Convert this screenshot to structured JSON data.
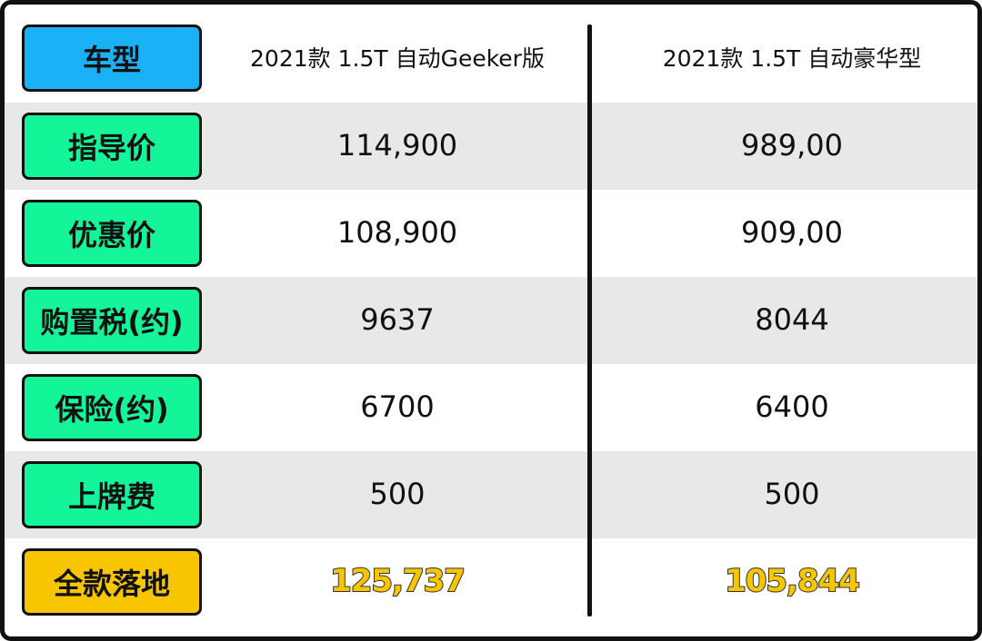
{
  "table": {
    "header": {
      "label": "车型",
      "columns": [
        "2021款 1.5T 自动Geeker版",
        "2021款 1.5T 自动豪华型"
      ]
    },
    "rows": [
      {
        "label": "指导价",
        "values": [
          "114,900",
          "989,00"
        ]
      },
      {
        "label": "优惠价",
        "values": [
          "108,900",
          "909,00"
        ]
      },
      {
        "label": "购置税(约)",
        "values": [
          "9637",
          "8044"
        ]
      },
      {
        "label": "保险(约)",
        "values": [
          "6700",
          "6400"
        ]
      },
      {
        "label": "上牌费",
        "values": [
          "500",
          "500"
        ]
      },
      {
        "label": "全款落地",
        "values": [
          "125,737",
          "105,844"
        ]
      }
    ]
  }
}
